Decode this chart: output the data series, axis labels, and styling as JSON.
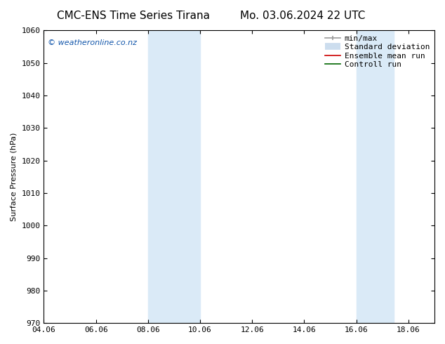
{
  "title_left": "CMC-ENS Time Series Tirana",
  "title_right": "Mo. 03.06.2024 22 UTC",
  "ylabel": "Surface Pressure (hPa)",
  "ylim": [
    970,
    1060
  ],
  "yticks": [
    970,
    980,
    990,
    1000,
    1010,
    1020,
    1030,
    1040,
    1050,
    1060
  ],
  "xlim_start": 4.06,
  "xlim_end": 19.06,
  "xtick_labels": [
    "04.06",
    "06.06",
    "08.06",
    "10.06",
    "12.06",
    "14.06",
    "16.06",
    "18.06"
  ],
  "xtick_positions": [
    4.06,
    6.06,
    8.06,
    10.06,
    12.06,
    14.06,
    16.06,
    18.06
  ],
  "shaded_bands": [
    {
      "x_start": 8.06,
      "x_end": 10.06
    },
    {
      "x_start": 16.06,
      "x_end": 17.5
    }
  ],
  "shaded_color": "#daeaf7",
  "background_color": "#ffffff",
  "watermark_text": "© weatheronline.co.nz",
  "watermark_color": "#1155aa",
  "watermark_fontsize": 8,
  "legend_entries": [
    {
      "label": "min/max",
      "color": "#999999",
      "lw": 1.2,
      "style": "line_with_caps"
    },
    {
      "label": "Standard deviation",
      "color": "#ccddee",
      "lw": 7,
      "style": "thick_line"
    },
    {
      "label": "Ensemble mean run",
      "color": "#cc0000",
      "lw": 1.2,
      "style": "line"
    },
    {
      "label": "Controll run",
      "color": "#006600",
      "lw": 1.2,
      "style": "line"
    }
  ],
  "title_fontsize": 11,
  "axis_label_fontsize": 8,
  "tick_fontsize": 8,
  "legend_fontsize": 8
}
